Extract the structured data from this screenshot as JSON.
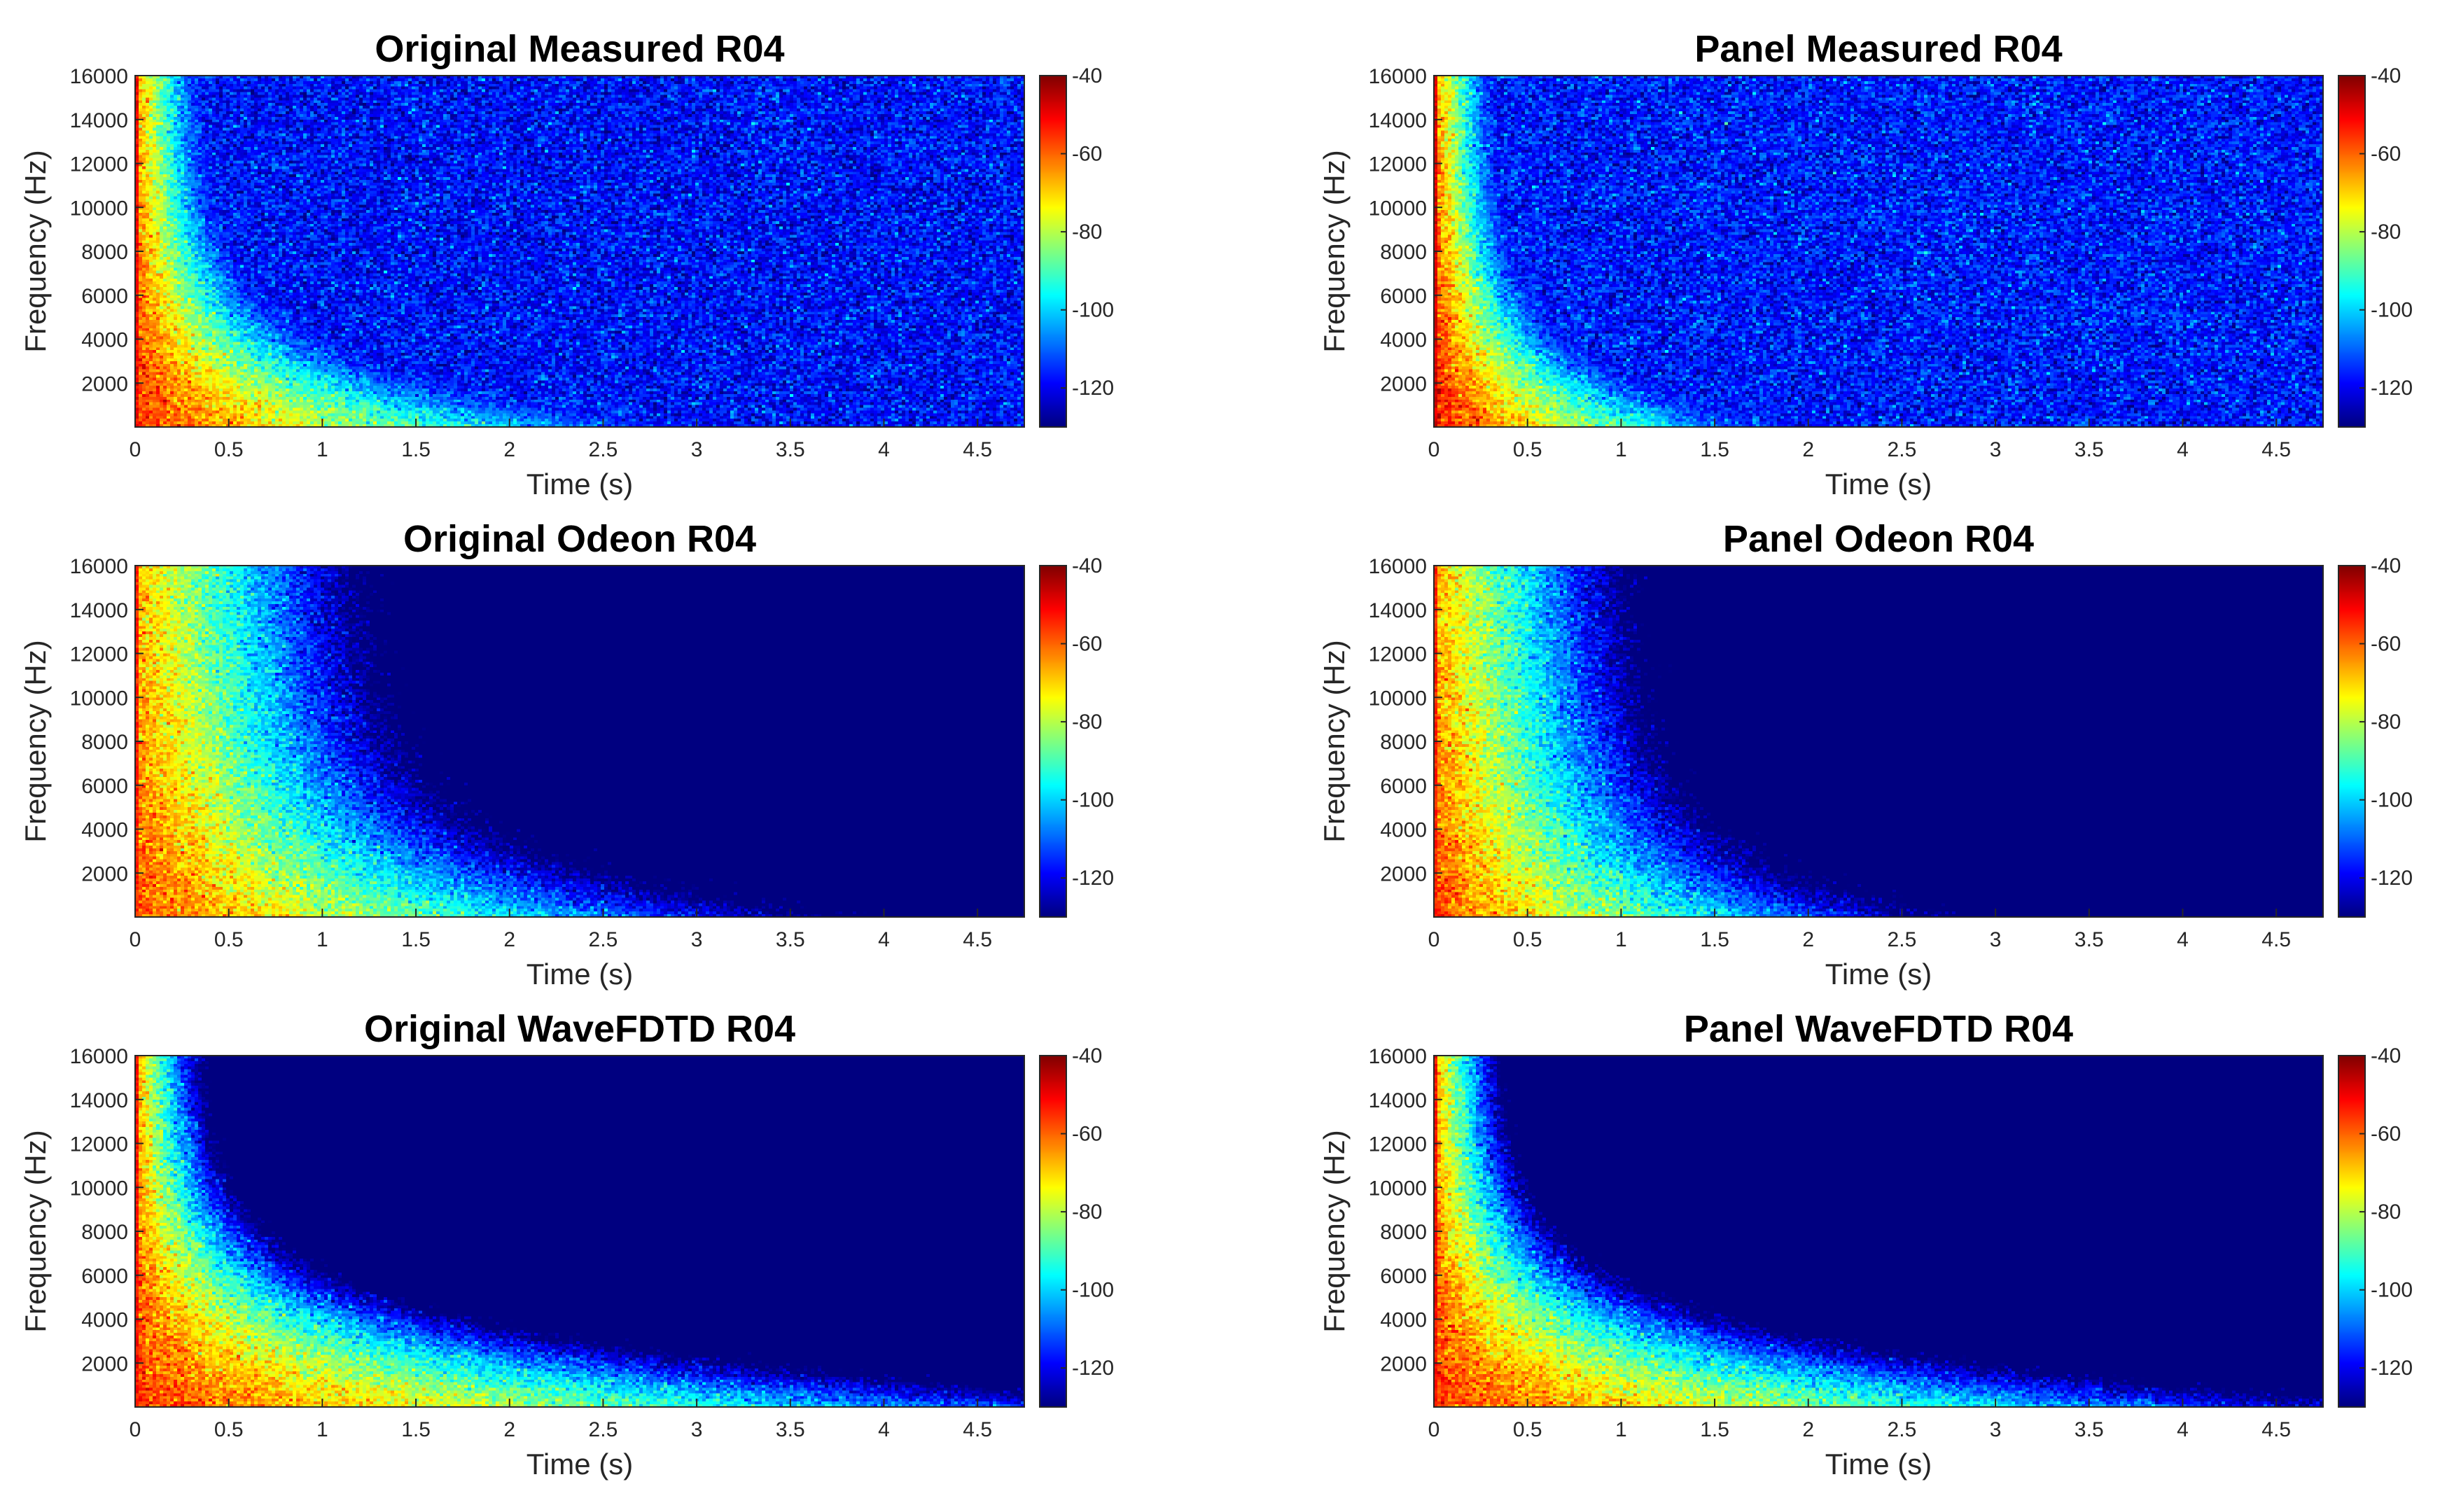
{
  "colors": {
    "axis": "#262626",
    "background": "#ffffff",
    "colormap": [
      "#00008f",
      "#0000ff",
      "#0080ff",
      "#00ffff",
      "#80ff80",
      "#ffff00",
      "#ff8000",
      "#ff0000",
      "#800000"
    ]
  },
  "chart_data": [
    {
      "type": "heatmap",
      "title": "Original Measured R04",
      "xlabel": "Time (s)",
      "ylabel": "Frequency (Hz)",
      "xlim": [
        0,
        4.75
      ],
      "ylim": [
        0,
        16000
      ],
      "xticks": [
        0,
        0.5,
        1,
        1.5,
        2,
        2.5,
        3,
        3.5,
        4,
        4.5
      ],
      "xtick_labels": [
        "0",
        "0.5",
        "1",
        "1.5",
        "2",
        "2.5",
        "3",
        "3.5",
        "4",
        "4.5"
      ],
      "yticks": [
        2000,
        4000,
        6000,
        8000,
        10000,
        12000,
        14000,
        16000
      ],
      "ytick_labels": [
        "2000",
        "4000",
        "6000",
        "8000",
        "10000",
        "12000",
        "14000",
        "16000"
      ],
      "colorbar": {
        "clim": [
          -130,
          -40
        ],
        "ticks": [
          -40,
          -60,
          -80,
          -100,
          -120
        ],
        "tick_labels": [
          "-40",
          "-60",
          "-80",
          "-100",
          "-120"
        ]
      },
      "model": {
        "peak_db": -55,
        "noise_floor_db": -118,
        "low_freq_decay_s": 2.6,
        "high_freq_decay_s": 0.35,
        "floor_noise_db": 6
      }
    },
    {
      "type": "heatmap",
      "title": "Panel Measured R04",
      "xlabel": "Time (s)",
      "ylabel": "Frequency (Hz)",
      "xlim": [
        0,
        4.75
      ],
      "ylim": [
        0,
        16000
      ],
      "xticks": [
        0,
        0.5,
        1,
        1.5,
        2,
        2.5,
        3,
        3.5,
        4,
        4.5
      ],
      "xtick_labels": [
        "0",
        "0.5",
        "1",
        "1.5",
        "2",
        "2.5",
        "3",
        "3.5",
        "4",
        "4.5"
      ],
      "yticks": [
        2000,
        4000,
        6000,
        8000,
        10000,
        12000,
        14000,
        16000
      ],
      "ytick_labels": [
        "2000",
        "4000",
        "6000",
        "8000",
        "10000",
        "12000",
        "14000",
        "16000"
      ],
      "colorbar": {
        "clim": [
          -130,
          -40
        ],
        "ticks": [
          -40,
          -60,
          -80,
          -100,
          -120
        ],
        "tick_labels": [
          "-40",
          "-60",
          "-80",
          "-100",
          "-120"
        ]
      },
      "model": {
        "peak_db": -52,
        "noise_floor_db": -117,
        "low_freq_decay_s": 1.6,
        "high_freq_decay_s": 0.3,
        "floor_noise_db": 6
      }
    },
    {
      "type": "heatmap",
      "title": "Original Odeon R04",
      "xlabel": "Time (s)",
      "ylabel": "Frequency (Hz)",
      "xlim": [
        0,
        4.75
      ],
      "ylim": [
        0,
        16000
      ],
      "xticks": [
        0,
        0.5,
        1,
        1.5,
        2,
        2.5,
        3,
        3.5,
        4,
        4.5
      ],
      "xtick_labels": [
        "0",
        "0.5",
        "1",
        "1.5",
        "2",
        "2.5",
        "3",
        "3.5",
        "4",
        "4.5"
      ],
      "yticks": [
        2000,
        4000,
        6000,
        8000,
        10000,
        12000,
        14000,
        16000
      ],
      "ytick_labels": [
        "2000",
        "4000",
        "6000",
        "8000",
        "10000",
        "12000",
        "14000",
        "16000"
      ],
      "colorbar": {
        "clim": [
          -130,
          -40
        ],
        "ticks": [
          -40,
          -60,
          -80,
          -100,
          -120
        ],
        "tick_labels": [
          "-40",
          "-60",
          "-80",
          "-100",
          "-120"
        ]
      },
      "model": {
        "peak_db": -58,
        "noise_floor_db": -130,
        "low_freq_decay_s": 3.0,
        "high_freq_decay_s": 1.1,
        "floor_noise_db": 0
      }
    },
    {
      "type": "heatmap",
      "title": "Panel Odeon R04",
      "xlabel": "Time (s)",
      "ylabel": "Frequency (Hz)",
      "xlim": [
        0,
        4.75
      ],
      "ylim": [
        0,
        16000
      ],
      "xticks": [
        0,
        0.5,
        1,
        1.5,
        2,
        2.5,
        3,
        3.5,
        4,
        4.5
      ],
      "xtick_labels": [
        "0",
        "0.5",
        "1",
        "1.5",
        "2",
        "2.5",
        "3",
        "3.5",
        "4",
        "4.5"
      ],
      "yticks": [
        2000,
        4000,
        6000,
        8000,
        10000,
        12000,
        14000,
        16000
      ],
      "ytick_labels": [
        "2000",
        "4000",
        "6000",
        "8000",
        "10000",
        "12000",
        "14000",
        "16000"
      ],
      "colorbar": {
        "clim": [
          -130,
          -40
        ],
        "ticks": [
          -40,
          -60,
          -80,
          -100,
          -120
        ],
        "tick_labels": [
          "-40",
          "-60",
          "-80",
          "-100",
          "-120"
        ]
      },
      "model": {
        "peak_db": -58,
        "noise_floor_db": -130,
        "low_freq_decay_s": 2.2,
        "high_freq_decay_s": 0.95,
        "floor_noise_db": 0
      }
    },
    {
      "type": "heatmap",
      "title": "Original WaveFDTD R04",
      "xlabel": "Time (s)",
      "ylabel": "Frequency (Hz)",
      "xlim": [
        0,
        4.75
      ],
      "ylim": [
        0,
        16000
      ],
      "xticks": [
        0,
        0.5,
        1,
        1.5,
        2,
        2.5,
        3,
        3.5,
        4,
        4.5
      ],
      "xtick_labels": [
        "0",
        "0.5",
        "1",
        "1.5",
        "2",
        "2.5",
        "3",
        "3.5",
        "4",
        "4.5"
      ],
      "yticks": [
        2000,
        4000,
        6000,
        8000,
        10000,
        12000,
        14000,
        16000
      ],
      "ytick_labels": [
        "2000",
        "4000",
        "6000",
        "8000",
        "10000",
        "12000",
        "14000",
        "16000"
      ],
      "colorbar": {
        "clim": [
          -130,
          -40
        ],
        "ticks": [
          -40,
          -60,
          -80,
          -100,
          -120
        ],
        "tick_labels": [
          "-40",
          "-60",
          "-80",
          "-100",
          "-120"
        ]
      },
      "model": {
        "peak_db": -56,
        "noise_floor_db": -130,
        "low_freq_decay_s": 4.8,
        "high_freq_decay_s": 0.3,
        "floor_noise_db": 0
      }
    },
    {
      "type": "heatmap",
      "title": "Panel WaveFDTD R04",
      "xlabel": "Time (s)",
      "ylabel": "Frequency (Hz)",
      "xlim": [
        0,
        4.75
      ],
      "ylim": [
        0,
        16000
      ],
      "xticks": [
        0,
        0.5,
        1,
        1.5,
        2,
        2.5,
        3,
        3.5,
        4,
        4.5
      ],
      "xtick_labels": [
        "0",
        "0.5",
        "1",
        "1.5",
        "2",
        "2.5",
        "3",
        "3.5",
        "4",
        "4.5"
      ],
      "yticks": [
        2000,
        4000,
        6000,
        8000,
        10000,
        12000,
        14000,
        16000
      ],
      "ytick_labels": [
        "2000",
        "4000",
        "6000",
        "8000",
        "10000",
        "12000",
        "14000",
        "16000"
      ],
      "colorbar": {
        "clim": [
          -130,
          -40
        ],
        "ticks": [
          -40,
          -60,
          -80,
          -100,
          -120
        ],
        "tick_labels": [
          "-40",
          "-60",
          "-80",
          "-100",
          "-120"
        ]
      },
      "model": {
        "peak_db": -56,
        "noise_floor_db": -130,
        "low_freq_decay_s": 4.2,
        "high_freq_decay_s": 0.3,
        "floor_noise_db": 0
      }
    }
  ]
}
